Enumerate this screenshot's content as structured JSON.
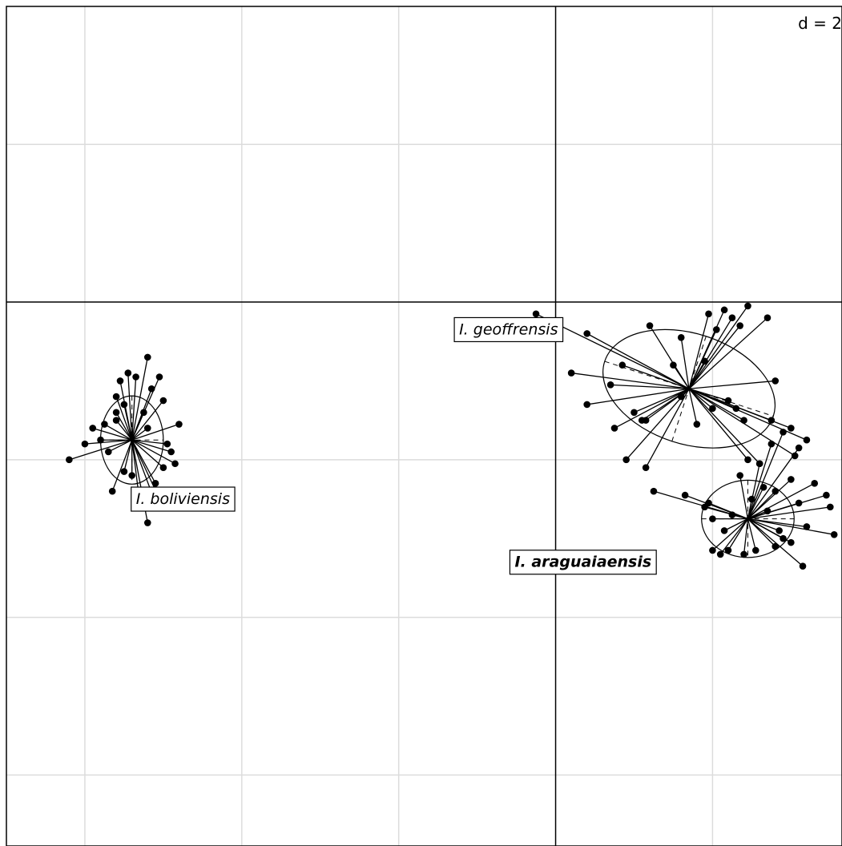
{
  "chart_data": {
    "type": "scatter",
    "scale_label": "d = 2",
    "grid_step": 2,
    "xlim": [
      -7.0,
      3.65
    ],
    "ylim": [
      -6.9,
      3.75
    ],
    "grid": true,
    "groups": [
      {
        "name": "I. boliviensis",
        "label_bold": false,
        "centroid": [
          -5.4,
          -1.75
        ],
        "ellipse": {
          "rx": 0.4,
          "ry": 0.56,
          "angle": 0
        },
        "label_pos": [
          -4.75,
          -2.5
        ],
        "points": [
          [
            -6.2,
            -2.0
          ],
          [
            -5.9,
            -1.6
          ],
          [
            -5.6,
            -1.5
          ],
          [
            -5.7,
            -1.9
          ],
          [
            -5.5,
            -1.3
          ],
          [
            -5.2,
            -0.7
          ],
          [
            -5.15,
            -1.1
          ],
          [
            -5.0,
            -1.25
          ],
          [
            -4.8,
            -1.55
          ],
          [
            -4.9,
            -1.9
          ],
          [
            -5.0,
            -2.1
          ],
          [
            -5.1,
            -2.3
          ],
          [
            -5.3,
            -2.55
          ],
          [
            -5.2,
            -2.8
          ],
          [
            -5.0,
            -2.6
          ],
          [
            -5.4,
            -2.2
          ],
          [
            -5.6,
            -1.2
          ],
          [
            -5.8,
            -1.75
          ],
          [
            -6.0,
            -1.8
          ],
          [
            -5.55,
            -1.0
          ],
          [
            -5.45,
            -0.9
          ],
          [
            -5.35,
            -0.95
          ],
          [
            -5.25,
            -1.4
          ],
          [
            -5.65,
            -2.4
          ],
          [
            -5.5,
            -2.15
          ],
          [
            -4.95,
            -1.8
          ],
          [
            -4.85,
            -2.05
          ],
          [
            -5.2,
            -1.6
          ],
          [
            -5.05,
            -0.95
          ],
          [
            -5.75,
            -1.55
          ],
          [
            -5.1,
            -2.55
          ],
          [
            -5.6,
            -1.4
          ]
        ]
      },
      {
        "name": "I. geoffrensis",
        "label_bold": false,
        "centroid": [
          1.7,
          -1.1
        ],
        "ellipse": {
          "rx": 1.13,
          "ry": 0.7,
          "angle": 18
        },
        "label_pos": [
          -0.6,
          -0.35
        ],
        "points": [
          [
            -0.25,
            -0.15
          ],
          [
            0.2,
            -0.9
          ],
          [
            0.4,
            -0.4
          ],
          [
            1.2,
            -0.3
          ],
          [
            1.6,
            -0.45
          ],
          [
            1.95,
            -0.15
          ],
          [
            2.05,
            -0.35
          ],
          [
            2.25,
            -0.2
          ],
          [
            2.35,
            -0.3
          ],
          [
            2.45,
            -0.05
          ],
          [
            2.7,
            -0.2
          ],
          [
            2.15,
            -0.1
          ],
          [
            1.0,
            -1.4
          ],
          [
            1.1,
            -1.5
          ],
          [
            0.75,
            -1.6
          ],
          [
            0.4,
            -1.3
          ],
          [
            1.15,
            -1.5
          ],
          [
            1.6,
            -1.2
          ],
          [
            2.0,
            -1.35
          ],
          [
            2.4,
            -1.5
          ],
          [
            2.75,
            -1.5
          ],
          [
            3.0,
            -1.6
          ],
          [
            3.2,
            -1.75
          ],
          [
            3.05,
            -1.95
          ],
          [
            2.6,
            -2.05
          ],
          [
            2.45,
            -2.0
          ],
          [
            1.15,
            -2.1
          ],
          [
            0.9,
            -2.0
          ],
          [
            2.8,
            -1.0
          ],
          [
            0.85,
            -0.8
          ],
          [
            1.8,
            -1.55
          ],
          [
            2.2,
            -1.25
          ],
          [
            2.3,
            -1.35
          ],
          [
            0.7,
            -1.05
          ],
          [
            1.9,
            -0.75
          ],
          [
            1.5,
            -0.8
          ]
        ]
      },
      {
        "name": "I. araguaiaensis",
        "label_bold": true,
        "centroid": [
          2.45,
          -2.75
        ],
        "ellipse": {
          "rx": 0.59,
          "ry": 0.49,
          "angle": 0
        },
        "label_pos": [
          0.35,
          -3.3
        ],
        "points": [
          [
            1.25,
            -2.4
          ],
          [
            1.65,
            -2.45
          ],
          [
            1.9,
            -2.6
          ],
          [
            2.0,
            -2.75
          ],
          [
            2.25,
            -2.7
          ],
          [
            2.65,
            -2.35
          ],
          [
            2.8,
            -2.4
          ],
          [
            3.0,
            -2.25
          ],
          [
            3.1,
            -2.55
          ],
          [
            3.5,
            -2.6
          ],
          [
            3.2,
            -2.85
          ],
          [
            2.9,
            -3.0
          ],
          [
            2.8,
            -3.1
          ],
          [
            2.55,
            -3.15
          ],
          [
            2.4,
            -3.2
          ],
          [
            2.2,
            -3.15
          ],
          [
            2.0,
            -3.15
          ],
          [
            1.95,
            -2.55
          ],
          [
            2.15,
            -2.9
          ],
          [
            2.6,
            -2.05
          ],
          [
            2.75,
            -1.8
          ],
          [
            2.9,
            -1.65
          ],
          [
            3.1,
            -1.85
          ],
          [
            3.3,
            -2.3
          ],
          [
            3.45,
            -2.45
          ],
          [
            3.0,
            -3.05
          ],
          [
            3.15,
            -3.35
          ],
          [
            3.55,
            -2.95
          ],
          [
            2.7,
            -2.65
          ],
          [
            2.85,
            -2.9
          ],
          [
            2.5,
            -2.5
          ],
          [
            2.1,
            -3.2
          ],
          [
            2.35,
            -2.2
          ]
        ]
      }
    ]
  }
}
